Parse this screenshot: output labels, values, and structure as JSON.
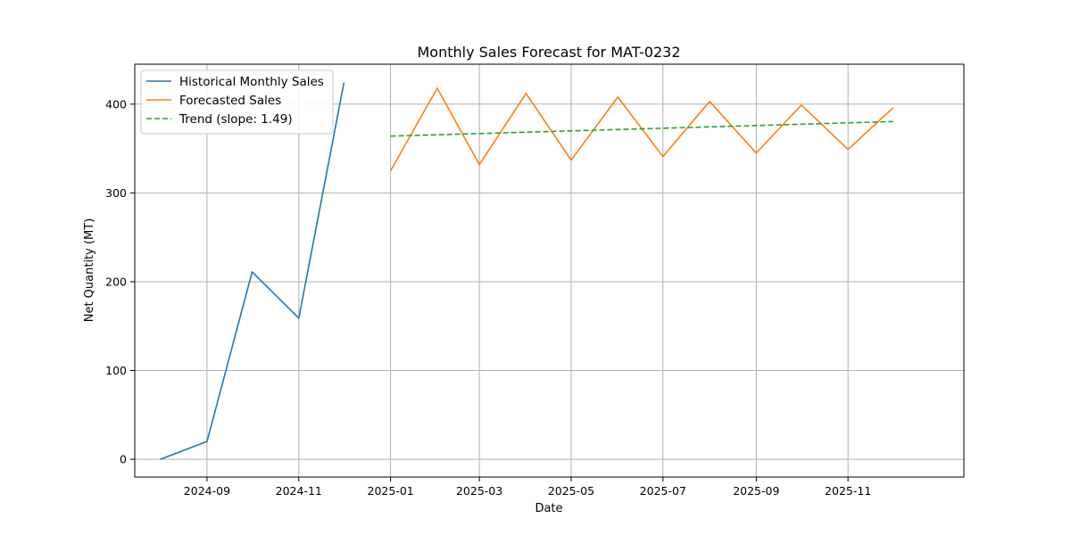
{
  "chart_data": {
    "type": "line",
    "title": "Monthly Sales Forecast for MAT-0232",
    "xlabel": "Date",
    "ylabel": "Net Quantity (MT)",
    "xlim": [
      "2024-07-15",
      "2026-01-17"
    ],
    "ylim": [
      -20,
      445
    ],
    "grid": true,
    "legend_position": "top-left",
    "x_ticks": [
      "2024-09",
      "2024-11",
      "2025-01",
      "2025-03",
      "2025-05",
      "2025-07",
      "2025-09",
      "2025-11"
    ],
    "y_ticks": [
      0,
      100,
      200,
      300,
      400
    ],
    "series": [
      {
        "name": "Historical Monthly Sales",
        "color": "#1f77b4",
        "style": "solid",
        "x": [
          "2024-08-01",
          "2024-09-01",
          "2024-10-01",
          "2024-11-01",
          "2024-12-01"
        ],
        "y": [
          0,
          20,
          211,
          159,
          424
        ]
      },
      {
        "name": "Forecasted Sales",
        "color": "#ff7f0e",
        "style": "solid",
        "x": [
          "2025-01-01",
          "2025-02-01",
          "2025-03-01",
          "2025-04-01",
          "2025-05-01",
          "2025-06-01",
          "2025-07-01",
          "2025-08-01",
          "2025-09-01",
          "2025-10-01",
          "2025-11-01",
          "2025-12-01"
        ],
        "y": [
          325,
          418,
          332,
          412,
          337,
          408,
          341,
          403,
          345,
          399,
          349,
          396
        ]
      },
      {
        "name": "Trend (slope: 1.49)",
        "color": "#2ca02c",
        "style": "dashed",
        "x": [
          "2025-01-01",
          "2025-12-01"
        ],
        "y": [
          364,
          380.4
        ]
      }
    ]
  }
}
